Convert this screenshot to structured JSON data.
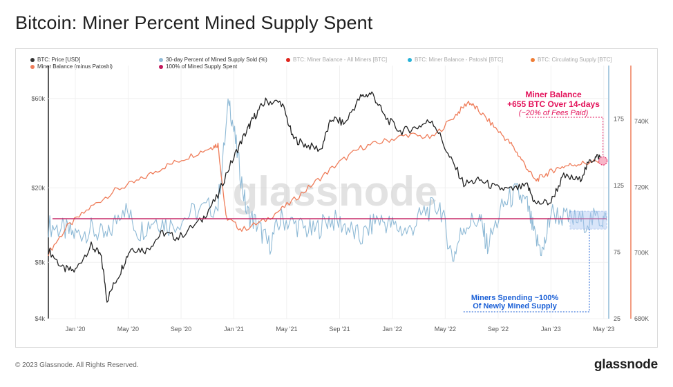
{
  "title": "Bitcoin: Miner Percent Mined Supply Spent",
  "footer": "© 2023 Glassnode. All Rights Reserved.",
  "brand": "glassnode",
  "watermark": "glassnode",
  "legend": [
    {
      "label": "BTC: Price [USD]",
      "color": "#333333",
      "faded": false
    },
    {
      "label": "30-day Percent of Mined Supply Sold (%)",
      "color": "#8fbad6",
      "faded": false
    },
    {
      "label": "BTC: Miner Balance - All Miners [BTC]",
      "color": "#e0251d",
      "faded": true
    },
    {
      "label": "BTC: Miner Balance - Patoshi [BTC]",
      "color": "#27b2d8",
      "faded": true
    },
    {
      "label": "BTC: Circulating Supply [BTC]",
      "color": "#ef7d35",
      "faded": true
    },
    {
      "label": "Miner Balance (minus Patoshi)",
      "color": "#ef7d5a",
      "faded": false
    },
    {
      "label": "100% of Mined Supply Spent",
      "color": "#c2185b",
      "faded": false
    }
  ],
  "annotations": {
    "miner_balance": {
      "line1": "Miner Balance",
      "line2": "+655 BTC Over 14-days",
      "line3": "(~20% of Fees Paid)"
    },
    "miners_spending": {
      "line1": "Miners Spending ~100%",
      "line2": "Of Newly Mined Supply"
    }
  },
  "chart_data": {
    "type": "line",
    "x_ticks": [
      "Jan '20",
      "May '20",
      "Sep '20",
      "Jan '21",
      "May '21",
      "Sep '21",
      "Jan '22",
      "May '22",
      "Sep '22",
      "Jan '23",
      "May '23"
    ],
    "y_left_ticks": [
      "$4k",
      "$8k",
      "$20k",
      "$60k"
    ],
    "y_left_scale": "log",
    "y_mid_ticks": [
      "25",
      "75",
      "125",
      "175"
    ],
    "y_right_ticks": [
      "680K",
      "700K",
      "720K",
      "740K"
    ],
    "series": [
      {
        "name": "BTC: Price [USD]",
        "color": "#222222",
        "axis": "left",
        "values": [
          [
            2019.83,
            9300
          ],
          [
            2019.92,
            7400
          ],
          [
            2020.0,
            7200
          ],
          [
            2020.1,
            9800
          ],
          [
            2020.16,
            8700
          ],
          [
            2020.2,
            5000
          ],
          [
            2020.28,
            7000
          ],
          [
            2020.35,
            9500
          ],
          [
            2020.45,
            9300
          ],
          [
            2020.55,
            11500
          ],
          [
            2020.65,
            10800
          ],
          [
            2020.8,
            13500
          ],
          [
            2020.9,
            18000
          ],
          [
            2021.0,
            29000
          ],
          [
            2021.08,
            40000
          ],
          [
            2021.13,
            48000
          ],
          [
            2021.2,
            58000
          ],
          [
            2021.3,
            57000
          ],
          [
            2021.37,
            37000
          ],
          [
            2021.45,
            34000
          ],
          [
            2021.55,
            32000
          ],
          [
            2021.62,
            47000
          ],
          [
            2021.7,
            44000
          ],
          [
            2021.8,
            61000
          ],
          [
            2021.87,
            64000
          ],
          [
            2021.95,
            48000
          ],
          [
            2022.05,
            40000
          ],
          [
            2022.15,
            42000
          ],
          [
            2022.25,
            46000
          ],
          [
            2022.35,
            30000
          ],
          [
            2022.45,
            21000
          ],
          [
            2022.55,
            22000
          ],
          [
            2022.65,
            20000
          ],
          [
            2022.75,
            19500
          ],
          [
            2022.85,
            20500
          ],
          [
            2022.9,
            16500
          ],
          [
            2023.0,
            16800
          ],
          [
            2023.08,
            23000
          ],
          [
            2023.18,
            22000
          ],
          [
            2023.25,
            28000
          ],
          [
            2023.3,
            29500
          ],
          [
            2023.35,
            27000
          ]
        ]
      },
      {
        "name": "30-day Percent of Mined Supply Sold (%)",
        "color": "#8fbad6",
        "axis": "mid",
        "values": [
          [
            2019.83,
            95
          ],
          [
            2019.92,
            92
          ],
          [
            2020.0,
            88
          ],
          [
            2020.1,
            92
          ],
          [
            2020.2,
            85
          ],
          [
            2020.3,
            110
          ],
          [
            2020.4,
            90
          ],
          [
            2020.5,
            100
          ],
          [
            2020.6,
            95
          ],
          [
            2020.75,
            105
          ],
          [
            2020.9,
            110
          ],
          [
            2020.97,
            190
          ],
          [
            2021.02,
            150
          ],
          [
            2021.08,
            105
          ],
          [
            2021.15,
            95
          ],
          [
            2021.22,
            80
          ],
          [
            2021.3,
            100
          ],
          [
            2021.4,
            95
          ],
          [
            2021.5,
            90
          ],
          [
            2021.6,
            100
          ],
          [
            2021.7,
            95
          ],
          [
            2021.8,
            85
          ],
          [
            2021.9,
            100
          ],
          [
            2022.0,
            95
          ],
          [
            2022.1,
            90
          ],
          [
            2022.2,
            105
          ],
          [
            2022.3,
            110
          ],
          [
            2022.38,
            70
          ],
          [
            2022.45,
            95
          ],
          [
            2022.55,
            100
          ],
          [
            2022.6,
            80
          ],
          [
            2022.7,
            110
          ],
          [
            2022.78,
            120
          ],
          [
            2022.85,
            110
          ],
          [
            2022.9,
            85
          ],
          [
            2022.95,
            75
          ],
          [
            2023.0,
            105
          ],
          [
            2023.1,
            100
          ],
          [
            2023.2,
            98
          ],
          [
            2023.3,
            100
          ],
          [
            2023.35,
            99
          ]
        ]
      },
      {
        "name": "Miner Balance (minus Patoshi)",
        "color": "#ef7d5a",
        "axis": "right",
        "values": [
          [
            2019.83,
            700000
          ],
          [
            2019.95,
            708000
          ],
          [
            2020.1,
            714000
          ],
          [
            2020.25,
            719000
          ],
          [
            2020.4,
            722000
          ],
          [
            2020.55,
            726000
          ],
          [
            2020.7,
            729000
          ],
          [
            2020.85,
            732000
          ],
          [
            2020.9,
            733000
          ],
          [
            2020.95,
            711000
          ],
          [
            2021.05,
            707000
          ],
          [
            2021.2,
            710000
          ],
          [
            2021.35,
            715000
          ],
          [
            2021.5,
            721000
          ],
          [
            2021.65,
            727000
          ],
          [
            2021.8,
            732000
          ],
          [
            2021.95,
            734000
          ],
          [
            2022.1,
            736000
          ],
          [
            2022.25,
            735000
          ],
          [
            2022.4,
            742000
          ],
          [
            2022.48,
            746000
          ],
          [
            2022.55,
            743000
          ],
          [
            2022.65,
            738000
          ],
          [
            2022.75,
            733000
          ],
          [
            2022.82,
            728000
          ],
          [
            2022.9,
            722000
          ],
          [
            2022.97,
            724000
          ],
          [
            2023.05,
            726000
          ],
          [
            2023.15,
            727000
          ],
          [
            2023.25,
            727500
          ],
          [
            2023.35,
            728000
          ]
        ]
      }
    ],
    "reference_line": {
      "name": "100% of Mined Supply Spent",
      "axis": "mid",
      "value": 100,
      "color": "#c2185b"
    }
  }
}
